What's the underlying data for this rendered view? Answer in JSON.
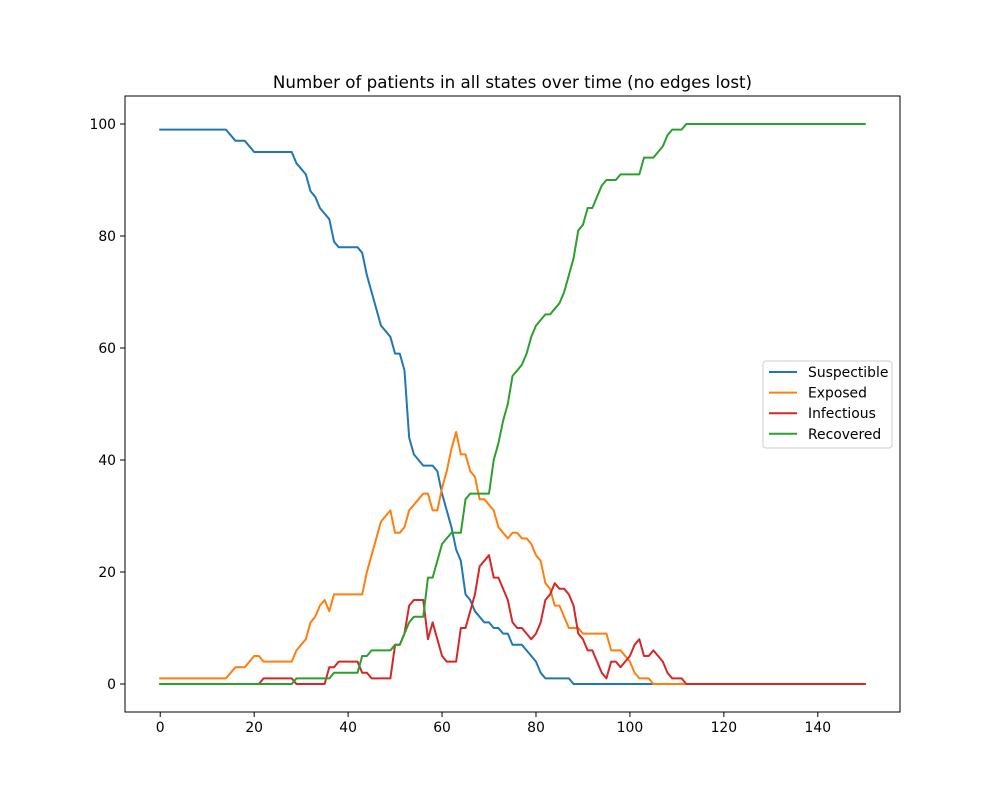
{
  "chart_data": {
    "type": "line",
    "title": "Number of patients in all states over time (no edges lost)",
    "xlabel": "",
    "ylabel": "",
    "xlim": [
      -7.5,
      157.5
    ],
    "ylim": [
      -5,
      105
    ],
    "xticks": [
      0,
      20,
      40,
      60,
      80,
      100,
      120,
      140
    ],
    "yticks": [
      0,
      20,
      40,
      60,
      80,
      100
    ],
    "grid": false,
    "legend_position": "center-right",
    "series": [
      {
        "name": "Suspectible",
        "color": "#1f77b4",
        "points": [
          [
            0,
            99
          ],
          [
            14,
            99
          ],
          [
            16,
            97
          ],
          [
            18,
            97
          ],
          [
            20,
            95
          ],
          [
            28,
            95
          ],
          [
            29,
            93
          ],
          [
            31,
            91
          ],
          [
            32,
            88
          ],
          [
            33,
            87
          ],
          [
            34,
            85
          ],
          [
            35,
            84
          ],
          [
            36,
            83
          ],
          [
            37,
            79
          ],
          [
            38,
            78
          ],
          [
            42,
            78
          ],
          [
            43,
            77
          ],
          [
            44,
            73
          ],
          [
            45,
            70
          ],
          [
            46,
            67
          ],
          [
            47,
            64
          ],
          [
            48,
            63
          ],
          [
            49,
            62
          ],
          [
            50,
            59
          ],
          [
            51,
            59
          ],
          [
            52,
            56
          ],
          [
            53,
            44
          ],
          [
            54,
            41
          ],
          [
            55,
            40
          ],
          [
            56,
            39
          ],
          [
            58,
            39
          ],
          [
            59,
            38
          ],
          [
            60,
            34
          ],
          [
            61,
            31
          ],
          [
            62,
            28
          ],
          [
            63,
            24
          ],
          [
            64,
            22
          ],
          [
            65,
            16
          ],
          [
            66,
            15
          ],
          [
            67,
            13
          ],
          [
            68,
            12
          ],
          [
            69,
            11
          ],
          [
            70,
            11
          ],
          [
            71,
            10
          ],
          [
            72,
            10
          ],
          [
            73,
            9
          ],
          [
            74,
            9
          ],
          [
            75,
            7
          ],
          [
            77,
            7
          ],
          [
            78,
            6
          ],
          [
            79,
            5
          ],
          [
            80,
            4
          ],
          [
            81,
            2
          ],
          [
            82,
            1
          ],
          [
            87,
            1
          ],
          [
            88,
            0
          ],
          [
            150,
            0
          ]
        ]
      },
      {
        "name": "Exposed",
        "color": "#ff7f0e",
        "points": [
          [
            0,
            1
          ],
          [
            14,
            1
          ],
          [
            16,
            3
          ],
          [
            18,
            3
          ],
          [
            20,
            5
          ],
          [
            21,
            5
          ],
          [
            22,
            4
          ],
          [
            28,
            4
          ],
          [
            29,
            6
          ],
          [
            31,
            8
          ],
          [
            32,
            11
          ],
          [
            33,
            12
          ],
          [
            34,
            14
          ],
          [
            35,
            15
          ],
          [
            36,
            13
          ],
          [
            37,
            16
          ],
          [
            43,
            16
          ],
          [
            44,
            20
          ],
          [
            45,
            23
          ],
          [
            46,
            26
          ],
          [
            47,
            29
          ],
          [
            48,
            30
          ],
          [
            49,
            31
          ],
          [
            50,
            27
          ],
          [
            51,
            27
          ],
          [
            52,
            28
          ],
          [
            53,
            31
          ],
          [
            54,
            32
          ],
          [
            55,
            33
          ],
          [
            56,
            34
          ],
          [
            57,
            34
          ],
          [
            58,
            31
          ],
          [
            59,
            31
          ],
          [
            60,
            35
          ],
          [
            61,
            38
          ],
          [
            62,
            42
          ],
          [
            63,
            45
          ],
          [
            64,
            41
          ],
          [
            65,
            41
          ],
          [
            66,
            38
          ],
          [
            67,
            37
          ],
          [
            68,
            33
          ],
          [
            69,
            33
          ],
          [
            70,
            32
          ],
          [
            71,
            31
          ],
          [
            72,
            28
          ],
          [
            73,
            27
          ],
          [
            74,
            26
          ],
          [
            75,
            27
          ],
          [
            76,
            27
          ],
          [
            77,
            26
          ],
          [
            78,
            26
          ],
          [
            79,
            25
          ],
          [
            80,
            23
          ],
          [
            81,
            22
          ],
          [
            82,
            18
          ],
          [
            83,
            17
          ],
          [
            84,
            14
          ],
          [
            85,
            14
          ],
          [
            86,
            12
          ],
          [
            87,
            10
          ],
          [
            89,
            10
          ],
          [
            90,
            9
          ],
          [
            94,
            9
          ],
          [
            95,
            9
          ],
          [
            96,
            6
          ],
          [
            98,
            6
          ],
          [
            99,
            5
          ],
          [
            100,
            4
          ],
          [
            101,
            2
          ],
          [
            102,
            1
          ],
          [
            104,
            1
          ],
          [
            105,
            0
          ],
          [
            150,
            0
          ]
        ]
      },
      {
        "name": "Infectious",
        "color": "#d62728",
        "points": [
          [
            0,
            0
          ],
          [
            21,
            0
          ],
          [
            22,
            1
          ],
          [
            28,
            1
          ],
          [
            29,
            0
          ],
          [
            35,
            0
          ],
          [
            36,
            3
          ],
          [
            37,
            3
          ],
          [
            38,
            4
          ],
          [
            42,
            4
          ],
          [
            43,
            2
          ],
          [
            44,
            2
          ],
          [
            45,
            1
          ],
          [
            49,
            1
          ],
          [
            50,
            7
          ],
          [
            51,
            7
          ],
          [
            52,
            9
          ],
          [
            53,
            14
          ],
          [
            54,
            15
          ],
          [
            56,
            15
          ],
          [
            57,
            8
          ],
          [
            58,
            11
          ],
          [
            59,
            8
          ],
          [
            60,
            5
          ],
          [
            61,
            4
          ],
          [
            63,
            4
          ],
          [
            64,
            10
          ],
          [
            65,
            10
          ],
          [
            66,
            13
          ],
          [
            67,
            16
          ],
          [
            68,
            21
          ],
          [
            69,
            22
          ],
          [
            70,
            23
          ],
          [
            71,
            19
          ],
          [
            72,
            19
          ],
          [
            73,
            17
          ],
          [
            74,
            15
          ],
          [
            75,
            11
          ],
          [
            76,
            10
          ],
          [
            77,
            10
          ],
          [
            78,
            9
          ],
          [
            79,
            8
          ],
          [
            80,
            9
          ],
          [
            81,
            11
          ],
          [
            82,
            15
          ],
          [
            83,
            16
          ],
          [
            84,
            18
          ],
          [
            85,
            17
          ],
          [
            86,
            17
          ],
          [
            87,
            16
          ],
          [
            88,
            14
          ],
          [
            89,
            9
          ],
          [
            90,
            8
          ],
          [
            91,
            6
          ],
          [
            92,
            6
          ],
          [
            93,
            4
          ],
          [
            94,
            2
          ],
          [
            95,
            1
          ],
          [
            96,
            4
          ],
          [
            97,
            4
          ],
          [
            98,
            3
          ],
          [
            99,
            4
          ],
          [
            100,
            5
          ],
          [
            101,
            7
          ],
          [
            102,
            8
          ],
          [
            103,
            5
          ],
          [
            104,
            5
          ],
          [
            105,
            6
          ],
          [
            106,
            5
          ],
          [
            107,
            4
          ],
          [
            108,
            2
          ],
          [
            109,
            1
          ],
          [
            111,
            1
          ],
          [
            112,
            0
          ],
          [
            150,
            0
          ]
        ]
      },
      {
        "name": "Recovered",
        "color": "#2ca02c",
        "points": [
          [
            0,
            0
          ],
          [
            28,
            0
          ],
          [
            29,
            1
          ],
          [
            35,
            1
          ],
          [
            36,
            1
          ],
          [
            37,
            2
          ],
          [
            42,
            2
          ],
          [
            43,
            5
          ],
          [
            44,
            5
          ],
          [
            45,
            6
          ],
          [
            49,
            6
          ],
          [
            50,
            7
          ],
          [
            51,
            7
          ],
          [
            52,
            9
          ],
          [
            53,
            11
          ],
          [
            54,
            12
          ],
          [
            56,
            12
          ],
          [
            57,
            19
          ],
          [
            58,
            19
          ],
          [
            59,
            22
          ],
          [
            60,
            25
          ],
          [
            61,
            26
          ],
          [
            62,
            27
          ],
          [
            64,
            27
          ],
          [
            65,
            33
          ],
          [
            66,
            34
          ],
          [
            70,
            34
          ],
          [
            71,
            40
          ],
          [
            72,
            43
          ],
          [
            73,
            47
          ],
          [
            74,
            50
          ],
          [
            75,
            55
          ],
          [
            76,
            56
          ],
          [
            77,
            57
          ],
          [
            78,
            59
          ],
          [
            79,
            62
          ],
          [
            80,
            64
          ],
          [
            81,
            65
          ],
          [
            82,
            66
          ],
          [
            83,
            66
          ],
          [
            84,
            67
          ],
          [
            85,
            68
          ],
          [
            86,
            70
          ],
          [
            87,
            73
          ],
          [
            88,
            76
          ],
          [
            89,
            81
          ],
          [
            90,
            82
          ],
          [
            91,
            85
          ],
          [
            92,
            85
          ],
          [
            93,
            87
          ],
          [
            94,
            89
          ],
          [
            95,
            90
          ],
          [
            97,
            90
          ],
          [
            98,
            91
          ],
          [
            102,
            91
          ],
          [
            103,
            94
          ],
          [
            105,
            94
          ],
          [
            106,
            95
          ],
          [
            107,
            96
          ],
          [
            108,
            98
          ],
          [
            109,
            99
          ],
          [
            111,
            99
          ],
          [
            112,
            100
          ],
          [
            150,
            100
          ]
        ]
      }
    ]
  }
}
